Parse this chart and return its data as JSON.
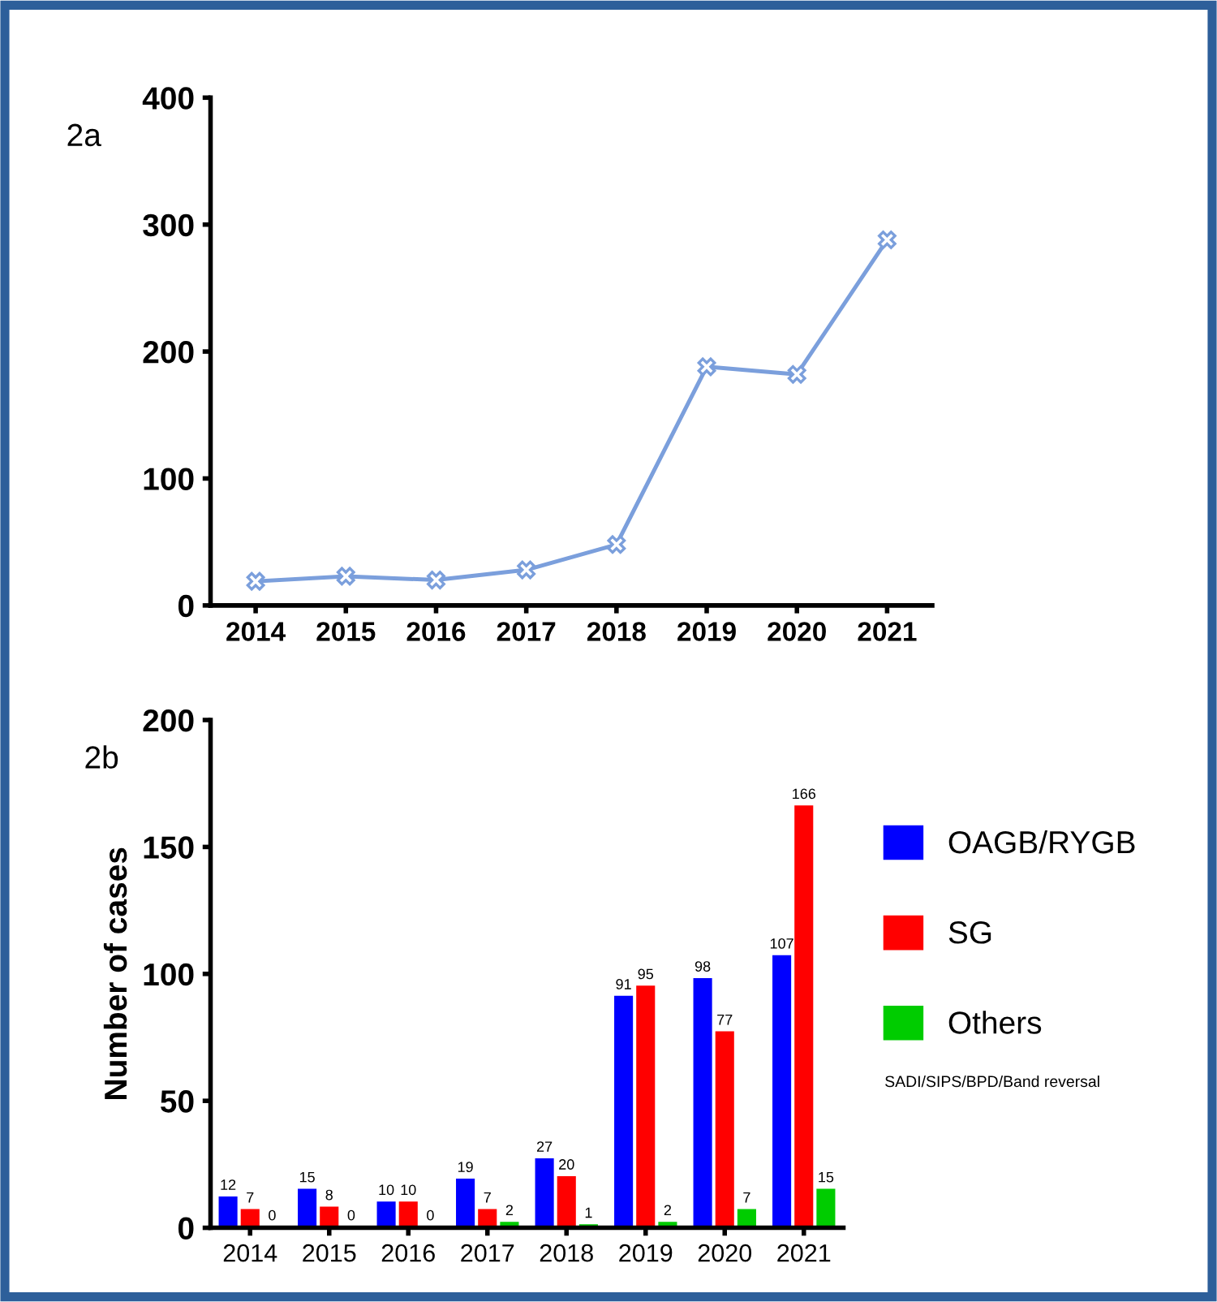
{
  "chart_data": [
    {
      "type": "line",
      "title": "2a",
      "categories": [
        "2014",
        "2015",
        "2016",
        "2017",
        "2018",
        "2019",
        "2020",
        "2021"
      ],
      "series": [
        {
          "color": "#7b9fdc",
          "values": [
            19,
            23,
            20,
            28,
            48,
            188,
            182,
            288
          ]
        }
      ],
      "ylim": [
        0,
        400
      ],
      "yticks": [
        0,
        100,
        200,
        300,
        400
      ],
      "marker": "cross",
      "line_style": "solid",
      "grid": false,
      "legend": false
    },
    {
      "type": "bar",
      "title": "2b",
      "ylabel": "Number of cases",
      "categories": [
        "2014",
        "2015",
        "2016",
        "2017",
        "2018",
        "2019",
        "2020",
        "2021"
      ],
      "series": [
        {
          "name": "OAGB/RYGB",
          "color": "#0000ff",
          "values": [
            12,
            15,
            10,
            19,
            27,
            91,
            98,
            107
          ]
        },
        {
          "name": "SG",
          "color": "#ff0000",
          "values": [
            7,
            8,
            10,
            7,
            20,
            95,
            77,
            166
          ]
        },
        {
          "name": "Others",
          "color": "#00cc00",
          "values": [
            0,
            0,
            0,
            2,
            1,
            2,
            7,
            15
          ]
        }
      ],
      "ylim": [
        0,
        200
      ],
      "yticks": [
        0,
        50,
        100,
        150,
        200
      ],
      "data_labels": true,
      "grid": false,
      "legend": "right",
      "annotations": [
        "SADI/SIPS/BPD/Band reversal"
      ]
    }
  ]
}
